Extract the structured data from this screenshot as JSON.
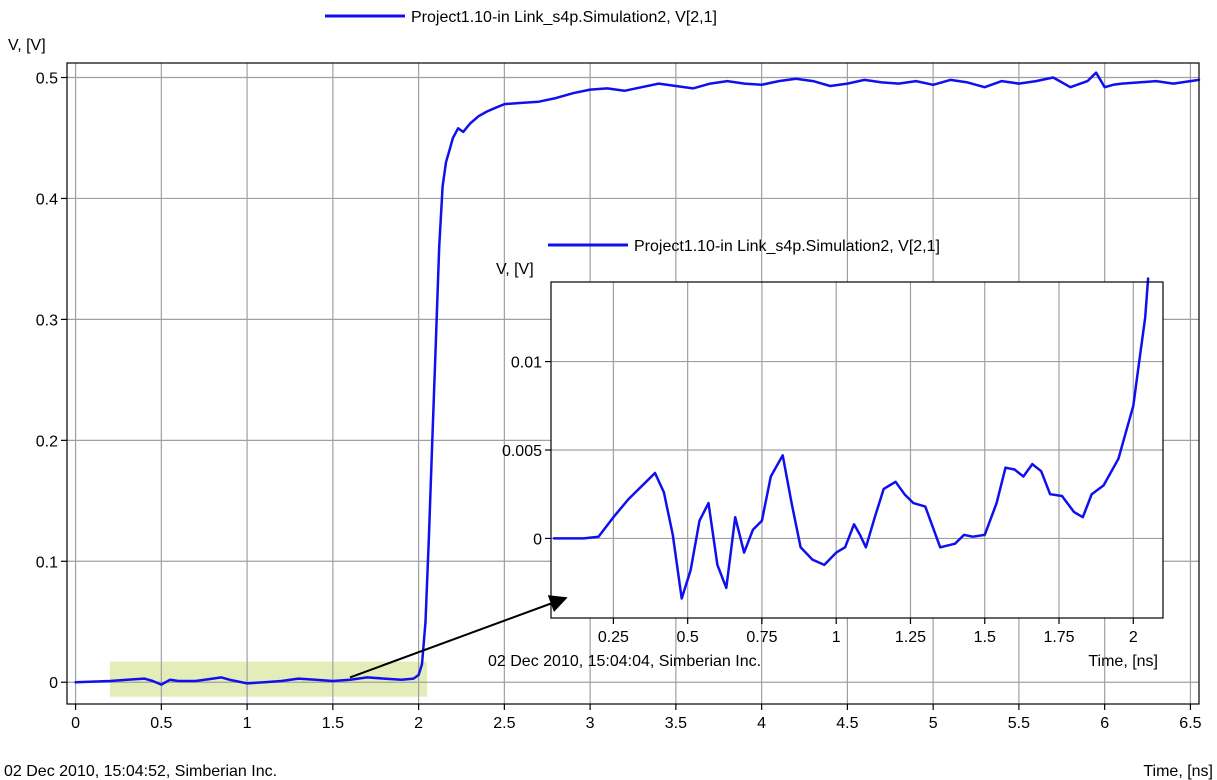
{
  "chart_data": [
    {
      "type": "line",
      "ylabel": "V, [V]",
      "xlabel": "Time, [ns]",
      "footer": "02 Dec 2010, 15:04:52, Simberian Inc.",
      "xlim": [
        -0.05,
        6.55
      ],
      "ylim": [
        -0.018,
        0.512
      ],
      "x_ticks": [
        0,
        0.5,
        1,
        1.5,
        2,
        2.5,
        3,
        3.5,
        4,
        4.5,
        5,
        5.5,
        6,
        6.5
      ],
      "x_tick_labels": [
        "0",
        "0.5",
        "1",
        "1.5",
        "2",
        "2.5",
        "3",
        "3.5",
        "4",
        "4.5",
        "5",
        "5.5",
        "6",
        "6.5"
      ],
      "y_ticks": [
        0,
        0.1,
        0.2,
        0.3,
        0.4,
        0.5
      ],
      "y_tick_labels": [
        "0",
        "0.1",
        "0.2",
        "0.3",
        "0.4",
        "0.5"
      ],
      "grid": true,
      "legend_position": "top-center",
      "highlight": {
        "x": [
          0.2,
          2.05
        ],
        "y": [
          -0.012,
          0.017
        ],
        "color": "#e3edba"
      },
      "series": [
        {
          "name": "Project1.10-in Link_s4p.Simulation2, V[2,1]",
          "color": "#1010ee",
          "x": [
            0,
            0.2,
            0.3,
            0.4,
            0.45,
            0.5,
            0.55,
            0.6,
            0.7,
            0.8,
            0.85,
            0.9,
            1.0,
            1.1,
            1.2,
            1.3,
            1.4,
            1.5,
            1.6,
            1.7,
            1.8,
            1.9,
            1.97,
            2.0,
            2.02,
            2.04,
            2.06,
            2.08,
            2.1,
            2.12,
            2.14,
            2.16,
            2.18,
            2.2,
            2.23,
            2.26,
            2.3,
            2.35,
            2.4,
            2.45,
            2.5,
            2.6,
            2.7,
            2.8,
            2.9,
            3.0,
            3.1,
            3.2,
            3.3,
            3.4,
            3.5,
            3.6,
            3.7,
            3.8,
            3.9,
            4.0,
            4.1,
            4.2,
            4.3,
            4.4,
            4.5,
            4.6,
            4.7,
            4.8,
            4.9,
            5.0,
            5.1,
            5.2,
            5.3,
            5.4,
            5.5,
            5.6,
            5.7,
            5.8,
            5.9,
            5.95,
            6.0,
            6.05,
            6.1,
            6.2,
            6.3,
            6.4,
            6.5,
            6.55
          ],
          "y": [
            0,
            0.001,
            0.002,
            0.003,
            0.001,
            -0.002,
            0.002,
            0.001,
            0.001,
            0.003,
            0.004,
            0.002,
            -0.001,
            0.0,
            0.001,
            0.003,
            0.002,
            0.001,
            0.002,
            0.004,
            0.003,
            0.002,
            0.003,
            0.006,
            0.015,
            0.05,
            0.12,
            0.2,
            0.28,
            0.36,
            0.41,
            0.43,
            0.44,
            0.45,
            0.458,
            0.455,
            0.462,
            0.468,
            0.472,
            0.475,
            0.478,
            0.479,
            0.48,
            0.483,
            0.487,
            0.49,
            0.491,
            0.489,
            0.492,
            0.495,
            0.493,
            0.491,
            0.495,
            0.497,
            0.495,
            0.494,
            0.497,
            0.499,
            0.497,
            0.493,
            0.495,
            0.498,
            0.496,
            0.495,
            0.497,
            0.494,
            0.498,
            0.496,
            0.492,
            0.497,
            0.495,
            0.497,
            0.5,
            0.492,
            0.497,
            0.504,
            0.492,
            0.494,
            0.495,
            0.496,
            0.497,
            0.495,
            0.497,
            0.498
          ]
        }
      ]
    },
    {
      "type": "line",
      "ylabel": "V, [V]",
      "xlabel": "Time, [ns]",
      "footer": "02 Dec 2010, 15:04:04, Simberian Inc.",
      "xlim": [
        0.04,
        2.1
      ],
      "ylim": [
        -0.0045,
        0.0145
      ],
      "x_ticks": [
        0.25,
        0.5,
        0.75,
        1,
        1.25,
        1.5,
        1.75,
        2
      ],
      "x_tick_labels": [
        "0.25",
        "0.5",
        "0.75",
        "1",
        "1.25",
        "1.5",
        "1.75",
        "2"
      ],
      "y_ticks": [
        0,
        0.005,
        0.01
      ],
      "y_tick_labels": [
        "0",
        "0.005",
        "0.01"
      ],
      "grid": true,
      "legend_position": "top-right",
      "series": [
        {
          "name": "Project1.10-in Link_s4p.Simulation2, V[2,1]",
          "color": "#1010ee",
          "x": [
            0.05,
            0.15,
            0.2,
            0.25,
            0.3,
            0.36,
            0.39,
            0.42,
            0.45,
            0.48,
            0.51,
            0.54,
            0.57,
            0.6,
            0.63,
            0.66,
            0.69,
            0.72,
            0.75,
            0.78,
            0.82,
            0.85,
            0.88,
            0.92,
            0.96,
            1.0,
            1.03,
            1.06,
            1.08,
            1.1,
            1.13,
            1.16,
            1.2,
            1.23,
            1.26,
            1.3,
            1.35,
            1.4,
            1.43,
            1.46,
            1.5,
            1.54,
            1.57,
            1.6,
            1.63,
            1.66,
            1.69,
            1.72,
            1.76,
            1.8,
            1.83,
            1.86,
            1.9,
            1.95,
            2.0,
            2.02,
            2.04,
            2.05
          ],
          "y": [
            0,
            0,
            0.0001,
            0.0012,
            0.0022,
            0.0032,
            0.0037,
            0.0026,
            0.0002,
            -0.0034,
            -0.0018,
            0.001,
            0.002,
            -0.0015,
            -0.0028,
            0.0012,
            -0.0008,
            0.0005,
            0.001,
            0.0035,
            0.0047,
            0.002,
            -0.0005,
            -0.0012,
            -0.0015,
            -0.0008,
            -0.0005,
            0.0008,
            0.0002,
            -0.0005,
            0.0012,
            0.0028,
            0.0032,
            0.0025,
            0.002,
            0.0018,
            -0.0005,
            -0.0003,
            0.0002,
            0.0001,
            0.0002,
            0.002,
            0.004,
            0.0039,
            0.0035,
            0.0042,
            0.0038,
            0.0025,
            0.0024,
            0.0015,
            0.0012,
            0.0025,
            0.003,
            0.0045,
            0.0075,
            0.01,
            0.0125,
            0.0147
          ]
        }
      ]
    }
  ]
}
